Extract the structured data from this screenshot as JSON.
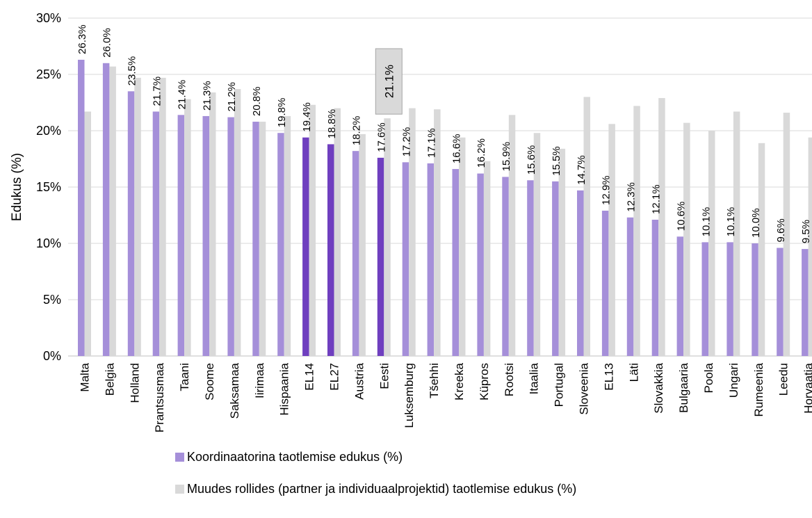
{
  "chart_data": {
    "type": "bar",
    "title": "",
    "xlabel": "",
    "ylabel": "Edukus (%)",
    "ylim": [
      0,
      30
    ],
    "yticks": [
      "0%",
      "5%",
      "10%",
      "15%",
      "20%",
      "25%",
      "30%"
    ],
    "grid": true,
    "legend_position": "bottom",
    "categories": [
      "Malta",
      "Belgia",
      "Holland",
      "Prantsusmaa",
      "Taani",
      "Soome",
      "Saksamaa",
      "Iirimaa",
      "Hispaania",
      "EL14",
      "EL27",
      "Austria",
      "Eesti",
      "Luksemburg",
      "Tšehhi",
      "Kreeka",
      "Küpros",
      "Rootsi",
      "Itaalia",
      "Portugal",
      "Sloveenia",
      "EL13",
      "Läti",
      "Slovakkia",
      "Bulgaaria",
      "Poola",
      "Ungari",
      "Rumeenia",
      "Leedu",
      "Horvaatia"
    ],
    "highlight_categories": [
      "EL14",
      "EL27",
      "Eesti"
    ],
    "series": [
      {
        "name": "Koordinaatorina taotlemise edukus (%)",
        "color": "#a58fd9",
        "highlight_color": "#6f3fbf",
        "values": [
          26.3,
          26.0,
          23.5,
          21.7,
          21.4,
          21.3,
          21.2,
          20.8,
          19.8,
          19.4,
          18.8,
          18.2,
          17.6,
          17.2,
          17.1,
          16.6,
          16.2,
          15.9,
          15.6,
          15.5,
          14.7,
          12.9,
          12.3,
          12.1,
          10.6,
          10.1,
          10.1,
          10.0,
          9.6,
          9.5
        ],
        "labels": [
          "26.3%",
          "26.0%",
          "23.5%",
          "21.7%",
          "21.4%",
          "21.3%",
          "21.2%",
          "20.8%",
          "19.8%",
          "19.4%",
          "18.8%",
          "18.2%",
          "17.6%",
          "17.2%",
          "17.1%",
          "16.6%",
          "16.2%",
          "15.9%",
          "15.6%",
          "15.5%",
          "14.7%",
          "12.9%",
          "12.3%",
          "12.1%",
          "10.6%",
          "10.1%",
          "10.1%",
          "10.0%",
          "9.6%",
          "9.5%"
        ]
      },
      {
        "name": "Muudes rollides (partner ja individuaalprojektid) taotlemise edukus (%)",
        "color": "#d9d9d9",
        "values": [
          21.7,
          25.7,
          24.7,
          24.7,
          22.8,
          23.4,
          23.7,
          20.8,
          21.3,
          22.3,
          22.0,
          19.7,
          21.1,
          22.0,
          21.9,
          19.4,
          17.3,
          21.4,
          19.8,
          18.4,
          23.0,
          20.6,
          22.2,
          22.9,
          20.7,
          20.0,
          21.7,
          18.9,
          21.6,
          19.4
        ]
      }
    ],
    "annotations": [
      {
        "category": "Eesti",
        "series": 1,
        "text": "21.1%"
      }
    ]
  }
}
